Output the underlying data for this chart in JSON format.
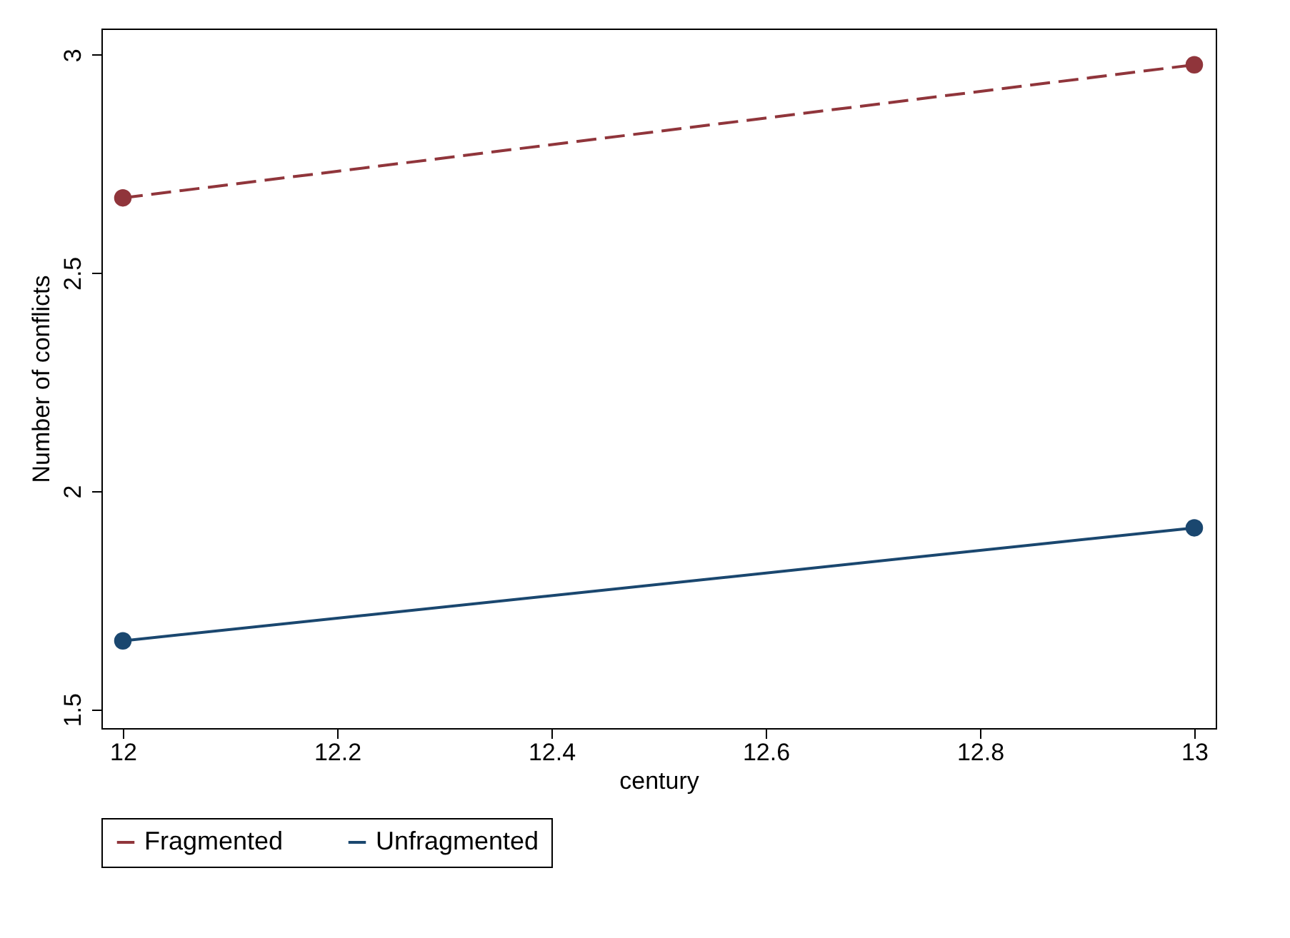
{
  "chart_data": {
    "type": "line",
    "xlabel": "century",
    "ylabel": "Number of conflicts",
    "x": [
      12,
      13
    ],
    "series": [
      {
        "name": "Fragmented",
        "color": "#90353b",
        "values": [
          2.672,
          2.977
        ],
        "line_style": "dashed"
      },
      {
        "name": "Unfragmented",
        "color": "#1a476f",
        "values": [
          1.657,
          1.916
        ],
        "line_style": "solid"
      }
    ],
    "xlim": [
      11.98,
      13.02
    ],
    "xticks": [
      12,
      12.2,
      12.4,
      12.6,
      12.8,
      13
    ],
    "ylim": [
      1.457,
      3.06
    ],
    "yticks": [
      1.5,
      2,
      2.5,
      3
    ],
    "grid": false,
    "legend": "bottom",
    "marker": "circle"
  }
}
